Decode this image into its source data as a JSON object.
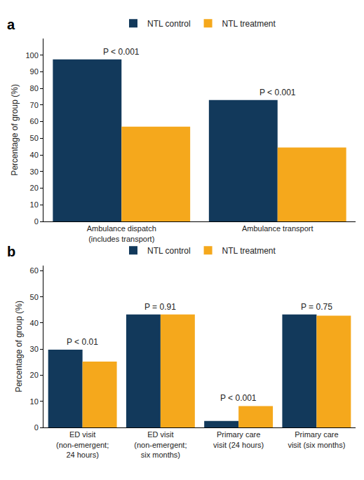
{
  "chart_data": [
    {
      "type": "bar",
      "title": "a",
      "categories": [
        "Ambulance dispatch\n(includes transport)",
        "Ambulance transport"
      ],
      "series": [
        {
          "name": "NTL control",
          "color": "#12395b",
          "values": [
            97.5,
            73
          ]
        },
        {
          "name": "NTL treatment",
          "color": "#f5a81c",
          "values": [
            57,
            44.5
          ]
        }
      ],
      "annotations": [
        "P < 0.001",
        "P < 0.001"
      ],
      "y_label": "Percentage of group (%)",
      "ylim": [
        0,
        110
      ],
      "yticks": [
        0,
        10,
        20,
        30,
        40,
        50,
        60,
        70,
        80,
        90,
        100
      ],
      "grid": false,
      "legend": "top"
    },
    {
      "type": "bar",
      "title": "b",
      "categories": [
        "ED visit\n(non-emergent;\n24 hours)",
        "ED visit\n(non-emergent;\nsix months)",
        "Primary care\nvisit (24 hours)",
        "Primary care\nvisit (six months)"
      ],
      "series": [
        {
          "name": "NTL control",
          "color": "#12395b",
          "values": [
            29.8,
            43.3,
            2.5,
            43.3
          ]
        },
        {
          "name": "NTL treatment",
          "color": "#f5a81c",
          "values": [
            25.2,
            43.3,
            8.2,
            42.8
          ]
        }
      ],
      "annotations": [
        "P < 0.01",
        "P = 0.91",
        "P < 0.001",
        "P = 0.75"
      ],
      "y_label": "Percentage of group (%)",
      "ylim": [
        0,
        62
      ],
      "yticks": [
        0,
        10,
        20,
        30,
        40,
        50,
        60
      ],
      "grid": false,
      "legend": "top"
    }
  ]
}
